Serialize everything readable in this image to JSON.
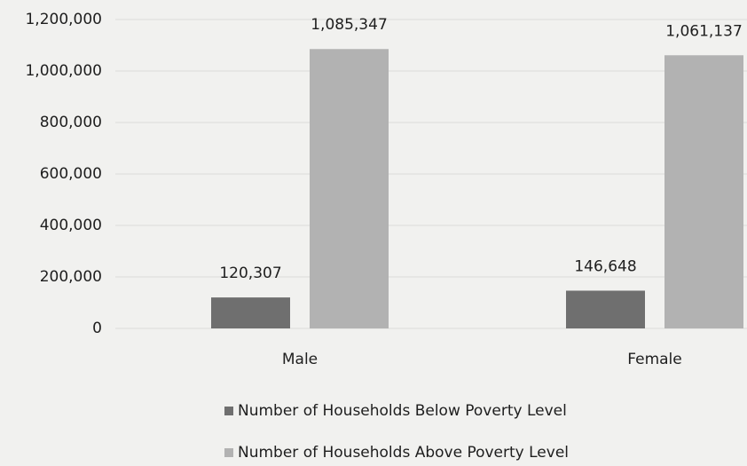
{
  "chart_data": {
    "type": "bar",
    "categories": [
      "Male",
      "Female"
    ],
    "series": [
      {
        "name": "Number of Households Below Poverty Level",
        "color": "#6f6f6f",
        "values": [
          120307,
          146648
        ],
        "value_labels": [
          "120,307",
          "146,648"
        ]
      },
      {
        "name": "Number of Households Above Poverty Level",
        "color": "#b2b2b2",
        "values": [
          1085347,
          1061137
        ],
        "value_labels": [
          "1,085,347",
          "1,061,137"
        ]
      }
    ],
    "ylim": [
      0,
      1200000
    ],
    "yticks": [
      0,
      {
        "value": 200000,
        "label": "200,000"
      },
      {
        "value": 400000,
        "label": "400,000"
      },
      {
        "value": 600000,
        "label": "600,000"
      },
      {
        "value": 800000,
        "label": "800,000"
      },
      {
        "value": 1000000,
        "label": "1,000,000"
      },
      {
        "value": 1200000,
        "label": "1,200,000"
      }
    ],
    "grid": true,
    "legend": "bottom"
  }
}
